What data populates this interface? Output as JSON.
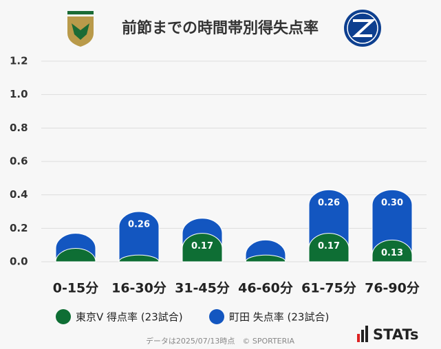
{
  "chart_data": {
    "type": "stacked_bar",
    "title": "前節までの時間帯別得失点率",
    "categories": [
      "0-15分",
      "16-30分",
      "31-45分",
      "46-60分",
      "61-75分",
      "76-90分"
    ],
    "series": [
      {
        "name": "東京V 得点率 (23試合)",
        "color": "#0e6e34",
        "values": [
          0.08,
          0.04,
          0.17,
          0.04,
          0.17,
          0.13
        ],
        "value_labels": [
          null,
          null,
          "0.17",
          null,
          "0.17",
          "0.13"
        ]
      },
      {
        "name": "町田 失点率 (23試合)",
        "color": "#1356c0",
        "values": [
          0.09,
          0.26,
          0.09,
          0.09,
          0.26,
          0.3
        ],
        "value_labels": [
          null,
          "0.26",
          null,
          null,
          "0.26",
          "0.30"
        ]
      }
    ],
    "ylim": [
      0,
      1.2
    ],
    "yticks": [
      {
        "value": 0,
        "label": "0.0"
      },
      0.2,
      0.4,
      0.6,
      0.8,
      {
        "value": 1,
        "label": "1.0"
      },
      1.2
    ],
    "grid": true,
    "footnote": "データは2025/07/13時点　© SPORTERIA",
    "brand": "STATs"
  }
}
